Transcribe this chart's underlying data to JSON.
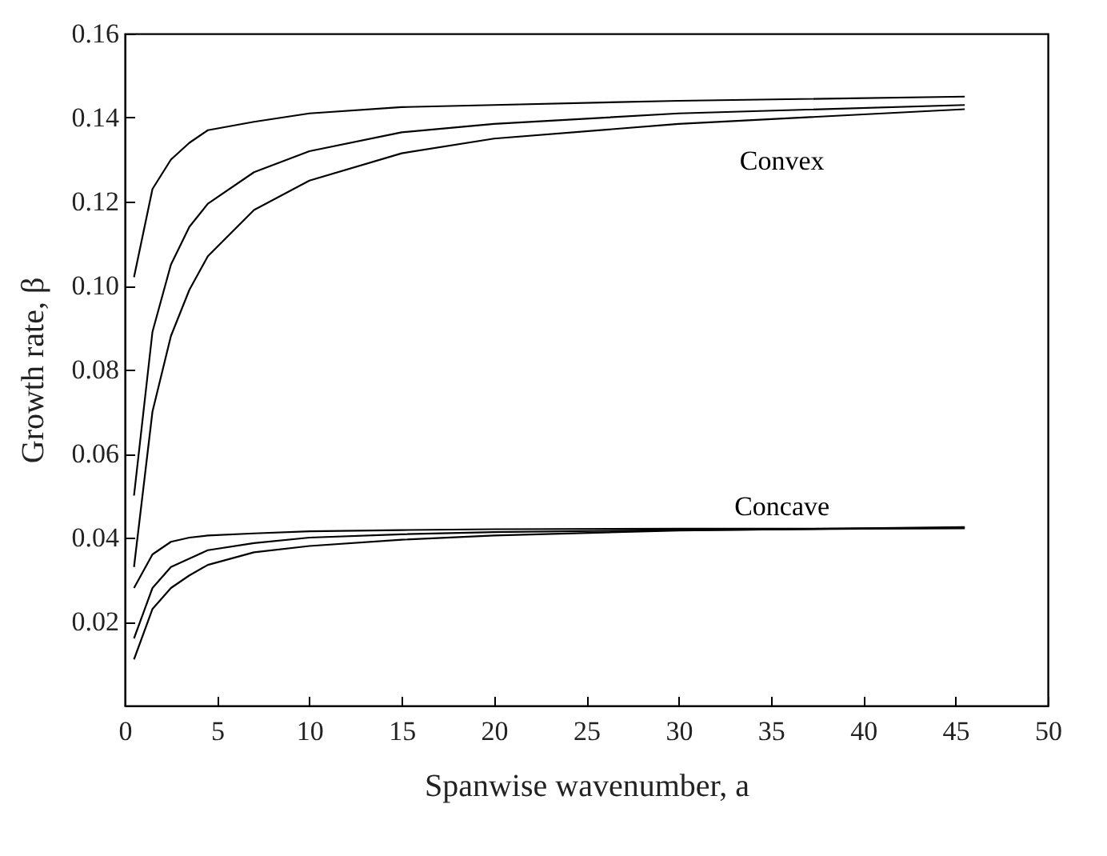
{
  "chart_data": {
    "type": "line",
    "xlabel": "Spanwise wavenumber, a",
    "ylabel": "Growth rate, β",
    "x": [
      0.5,
      1.5,
      2.5,
      3.5,
      4.5,
      7,
      10,
      15,
      20,
      30,
      45.5
    ],
    "series": [
      {
        "color": "#000000",
        "values": [
          0.102,
          0.123,
          0.13,
          0.134,
          0.137,
          0.139,
          0.141,
          0.1425,
          0.143,
          0.144,
          0.145
        ]
      },
      {
        "color": "#000000",
        "values": [
          0.05,
          0.089,
          0.105,
          0.114,
          0.1195,
          0.127,
          0.132,
          0.1365,
          0.1385,
          0.141,
          0.143
        ]
      },
      {
        "color": "#000000",
        "values": [
          0.033,
          0.07,
          0.088,
          0.099,
          0.107,
          0.118,
          0.125,
          0.1315,
          0.135,
          0.1385,
          0.142
        ]
      },
      {
        "color": "#000000",
        "values": [
          0.028,
          0.036,
          0.039,
          0.04,
          0.0405,
          0.041,
          0.0415,
          0.0418,
          0.042,
          0.0421,
          0.0422
        ]
      },
      {
        "color": "#000000",
        "values": [
          0.016,
          0.028,
          0.033,
          0.035,
          0.037,
          0.0387,
          0.04,
          0.0408,
          0.0413,
          0.0418,
          0.0423
        ]
      },
      {
        "color": "#000000",
        "values": [
          0.011,
          0.023,
          0.028,
          0.031,
          0.0335,
          0.0365,
          0.038,
          0.0395,
          0.0405,
          0.0417,
          0.0425
        ]
      }
    ],
    "xlim": [
      0,
      50
    ],
    "ylim": [
      0,
      0.16
    ],
    "xticks": [
      0,
      5,
      10,
      15,
      20,
      25,
      30,
      35,
      40,
      45,
      50
    ],
    "yticks": [
      {
        "value": 0.02,
        "label": "0.02"
      },
      {
        "value": 0.04,
        "label": "0.04"
      },
      {
        "value": 0.06,
        "label": "0.06"
      },
      {
        "value": 0.08,
        "label": "0.08"
      },
      {
        "value": 0.1,
        "label": "0.10"
      },
      {
        "value": 0.12,
        "label": "0.12"
      },
      {
        "value": 0.14,
        "label": "0.14"
      },
      {
        "value": 0.16,
        "label": "0.16"
      }
    ],
    "annotations": [
      "Convex",
      "Concave"
    ],
    "grid": false,
    "legend": false,
    "marker": "none",
    "line_style": "solid"
  }
}
